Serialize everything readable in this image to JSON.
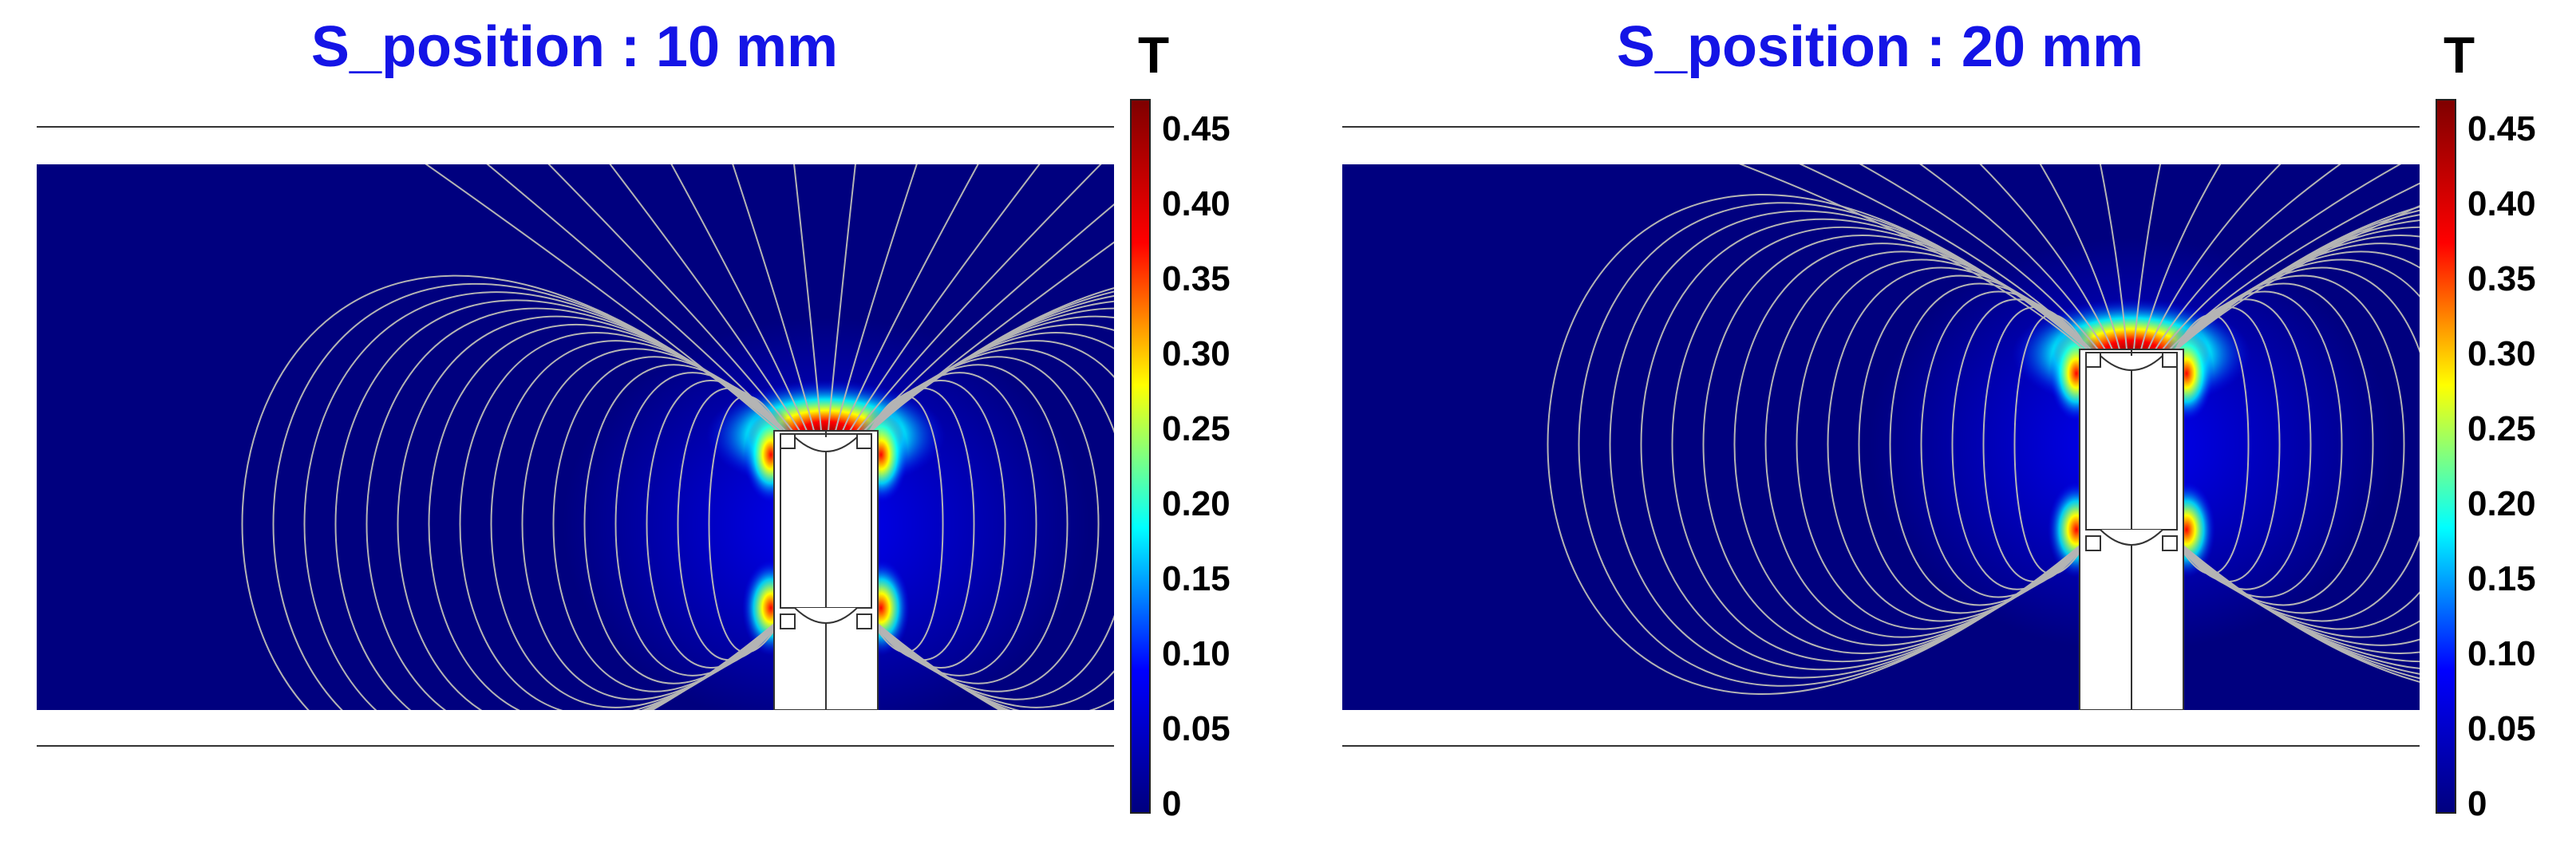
{
  "chart_data": [
    {
      "type": "heatmap",
      "title": "S_position : 10 mm",
      "colorbar": {
        "unit": "T",
        "ticks": [
          "0.45",
          "0.40",
          "0.35",
          "0.30",
          "0.25",
          "0.20",
          "0.15",
          "0.10",
          "0.05",
          "0"
        ],
        "range": [
          0,
          0.47
        ],
        "colormap": [
          "#00007f",
          "#0000ff",
          "#00ffff",
          "#ffff00",
          "#ff0000",
          "#7f0000"
        ]
      },
      "magnet_position_mm": 10,
      "max_field_T": 0.47
    },
    {
      "type": "heatmap",
      "title": "S_position : 20 mm",
      "colorbar": {
        "unit": "T",
        "ticks": [
          "0.45",
          "0.40",
          "0.35",
          "0.30",
          "0.25",
          "0.20",
          "0.15",
          "0.10",
          "0.05",
          "0"
        ],
        "range": [
          0,
          0.47
        ],
        "colormap": [
          "#00007f",
          "#0000ff",
          "#00ffff",
          "#ffff00",
          "#ff0000",
          "#7f0000"
        ]
      },
      "magnet_position_mm": 20,
      "max_field_T": 0.47
    }
  ]
}
